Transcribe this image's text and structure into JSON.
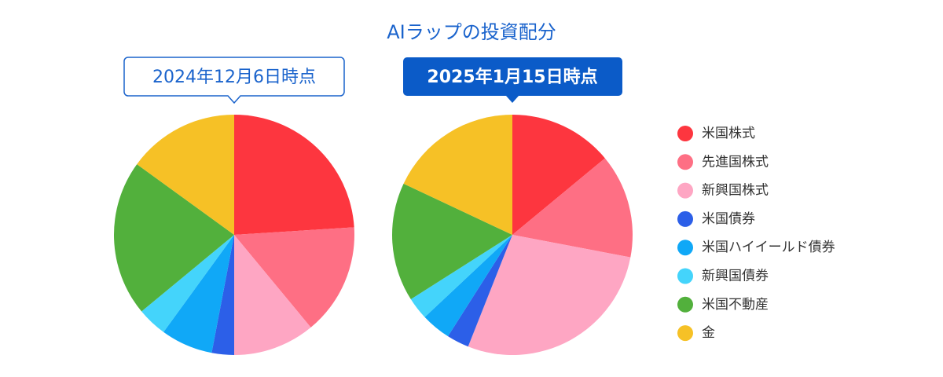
{
  "title": "AIラップの投資配分",
  "chart_data": [
    {
      "type": "pie",
      "title": "2024年12月6日時点",
      "categories": [
        "米国株式",
        "先進国株式",
        "新興国株式",
        "米国債券",
        "米国ハイイールド債券",
        "新興国債券",
        "米国不動産",
        "金"
      ],
      "values": [
        24,
        15,
        11,
        3,
        7,
        4,
        21,
        15
      ],
      "colors": [
        "#fd363f",
        "#fe6f84",
        "#fea6c3",
        "#2c5fe8",
        "#10a8f7",
        "#44d4fb",
        "#52b03c",
        "#f6c126"
      ]
    },
    {
      "type": "pie",
      "title": "2025年1月15日時点",
      "categories": [
        "米国株式",
        "先進国株式",
        "新興国株式",
        "米国債券",
        "米国ハイイールド債券",
        "新興国債券",
        "米国不動産",
        "金"
      ],
      "values": [
        14,
        14,
        28,
        3,
        4,
        3,
        16,
        18
      ],
      "colors": [
        "#fd363f",
        "#fe6f84",
        "#fea6c3",
        "#2c5fe8",
        "#10a8f7",
        "#44d4fb",
        "#52b03c",
        "#f6c126"
      ]
    }
  ]
}
